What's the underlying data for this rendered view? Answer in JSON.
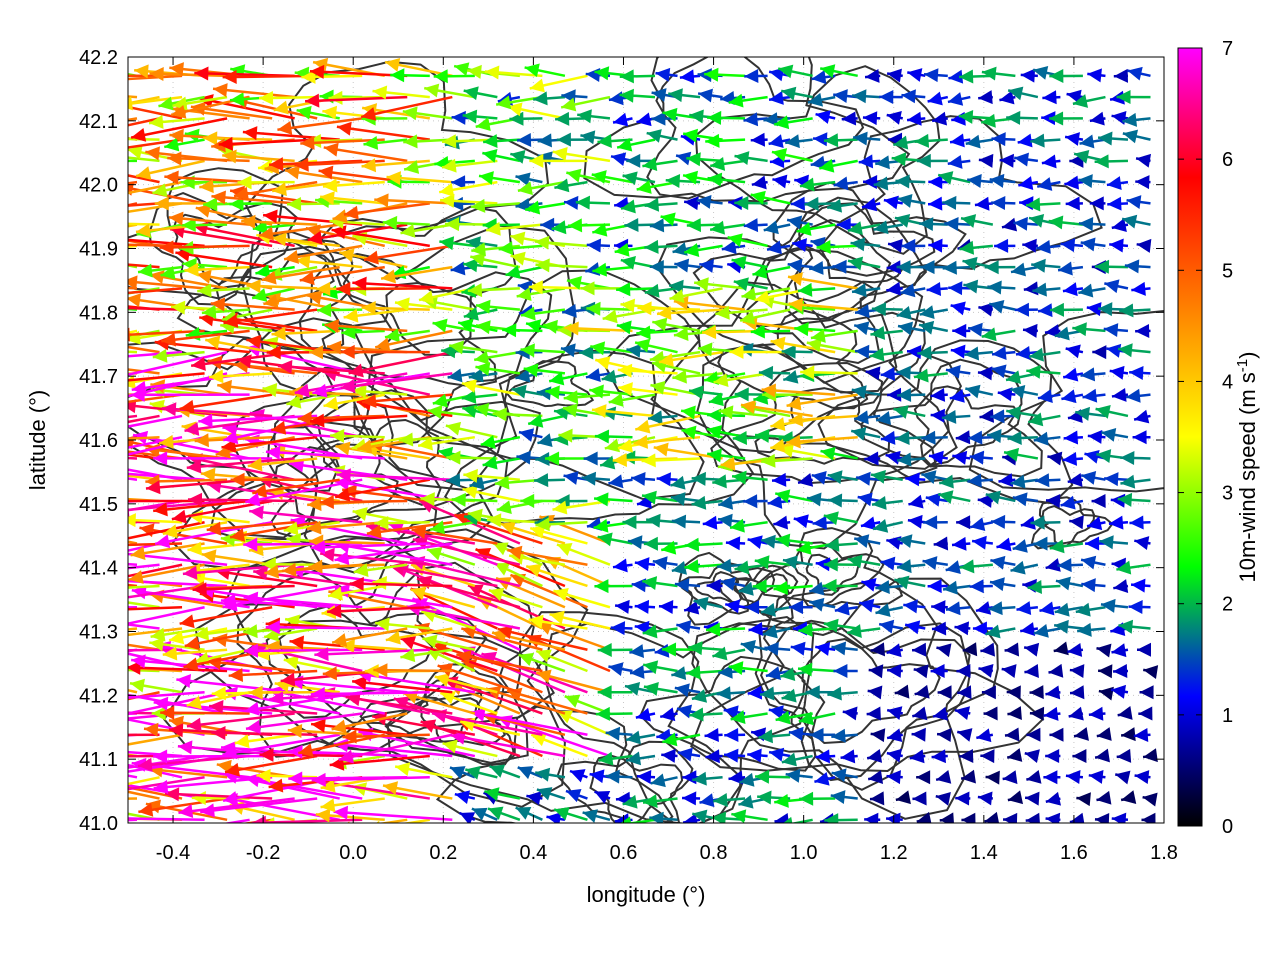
{
  "chart_data": {
    "type": "vector_field",
    "xlabel": "longitude (°)",
    "ylabel": "latitude (°)",
    "xlim": [
      -0.5,
      1.8
    ],
    "ylim": [
      41.0,
      42.2
    ],
    "x_ticks": [
      "-0.4",
      "-0.2",
      "0.0",
      "0.2",
      "0.4",
      "0.6",
      "0.8",
      "1.0",
      "1.2",
      "1.4",
      "1.6",
      "1.8"
    ],
    "y_ticks": [
      "41.0",
      "41.1",
      "41.2",
      "41.3",
      "41.4",
      "41.5",
      "41.6",
      "41.7",
      "41.8",
      "41.9",
      "42.0",
      "42.1",
      "42.2"
    ],
    "grid": true,
    "colorbar": {
      "label": "10m-wind speed (m s-1)",
      "label_main": "10m-wind speed (m s",
      "label_sup": "-1",
      "label_end": ")",
      "range": [
        0,
        7
      ],
      "ticks": [
        "0",
        "1",
        "2",
        "3",
        "4",
        "5",
        "6",
        "7"
      ],
      "palette": [
        "#000000",
        "#0000ff",
        "#00ff00",
        "#ffff00",
        "#ff8000",
        "#ff0000",
        "#ff00ff"
      ]
    },
    "contour_color": "#333333",
    "wind_field": {
      "dominant_direction": "westward",
      "speed_regions": [
        {
          "lon_range": [
            -0.5,
            0.25
          ],
          "lat_range": [
            41.0,
            41.75
          ],
          "speed": 5.5
        },
        {
          "lon_range": [
            -0.5,
            0.25
          ],
          "lat_range": [
            41.75,
            42.2
          ],
          "speed": 4.2
        },
        {
          "lon_range": [
            0.25,
            0.6
          ],
          "lat_range": [
            41.1,
            41.45
          ],
          "speed": 5.0
        },
        {
          "lon_range": [
            0.25,
            0.6
          ],
          "lat_range": [
            41.45,
            42.2
          ],
          "speed": 2.4
        },
        {
          "lon_range": [
            0.6,
            1.15
          ],
          "lat_range": [
            41.55,
            41.85
          ],
          "speed": 3.0
        },
        {
          "lon_range": [
            0.6,
            1.15
          ],
          "lat_range": [
            41.85,
            42.2
          ],
          "speed": 1.7
        },
        {
          "lon_range": [
            0.6,
            1.15
          ],
          "lat_range": [
            41.0,
            41.55
          ],
          "speed": 1.6
        },
        {
          "lon_range": [
            1.15,
            1.8
          ],
          "lat_range": [
            41.0,
            41.3
          ],
          "speed": 0.7
        },
        {
          "lon_range": [
            1.15,
            1.8
          ],
          "lat_range": [
            41.3,
            42.2
          ],
          "speed": 1.4
        }
      ]
    }
  }
}
